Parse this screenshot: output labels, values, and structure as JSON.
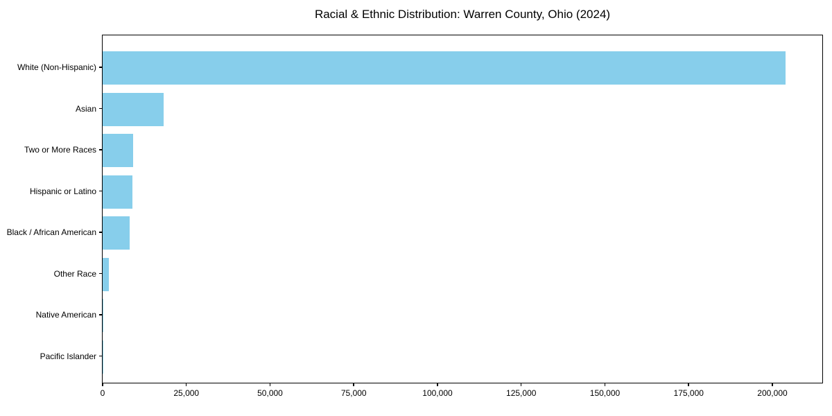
{
  "chart_data": {
    "type": "bar",
    "orientation": "horizontal",
    "title": "Racial & Ethnic Distribution: Warren County, Ohio (2024)",
    "categories": [
      "White (Non-Hispanic)",
      "Asian",
      "Two or More Races",
      "Hispanic or Latino",
      "Black / African American",
      "Other Race",
      "Native American",
      "Pacific Islander"
    ],
    "values": [
      204000,
      18200,
      9100,
      8900,
      8100,
      1800,
      150,
      50
    ],
    "bar_color": "#87CEEB",
    "xlabel": "",
    "ylabel": "",
    "xlim": [
      0,
      214700
    ],
    "x_ticks": [
      0,
      25000,
      50000,
      75000,
      100000,
      125000,
      150000,
      175000,
      200000
    ],
    "x_tick_labels": [
      "0",
      "25,000",
      "50,000",
      "75,000",
      "100,000",
      "125,000",
      "150,000",
      "175,000",
      "200,000"
    ],
    "grid": false,
    "legend": false,
    "axis_color": "#000000",
    "background_color": "#ffffff"
  }
}
